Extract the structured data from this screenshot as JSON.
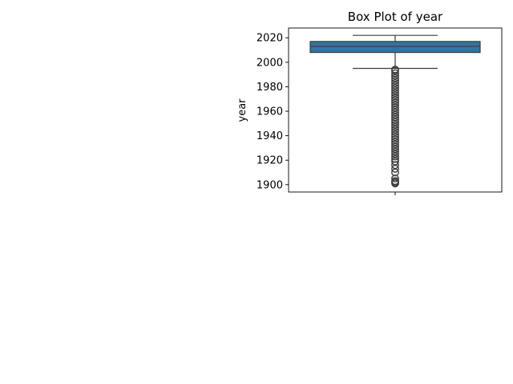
{
  "chart_data": {
    "type": "box",
    "title": "Box Plot of year",
    "xlabel": "",
    "ylabel": "year",
    "ylim": [
      1894,
      2028
    ],
    "yticks": [
      1900,
      1920,
      1940,
      1960,
      1980,
      2000,
      2020
    ],
    "ytick_labels": [
      "1900",
      "1920",
      "1940",
      "1960",
      "1980",
      "2000",
      "2020"
    ],
    "grid": false,
    "box": {
      "q1": 2008,
      "median": 2013,
      "q3": 2017,
      "whisker_low": 1995,
      "whisker_high": 2022,
      "outliers": [
        1901,
        1902,
        1903,
        1905,
        1910,
        1913,
        1916,
        1919,
        1921,
        1923,
        1925,
        1927,
        1929,
        1931,
        1933,
        1935,
        1937,
        1939,
        1941,
        1943,
        1945,
        1947,
        1949,
        1951,
        1953,
        1955,
        1957,
        1959,
        1961,
        1963,
        1965,
        1967,
        1969,
        1971,
        1973,
        1975,
        1977,
        1979,
        1981,
        1983,
        1985,
        1987,
        1989,
        1991,
        1993,
        1994
      ]
    },
    "colors": {
      "box_fill": "#3274a1",
      "line": "#3d3d3d",
      "outlier": "#3d3d3d"
    }
  }
}
